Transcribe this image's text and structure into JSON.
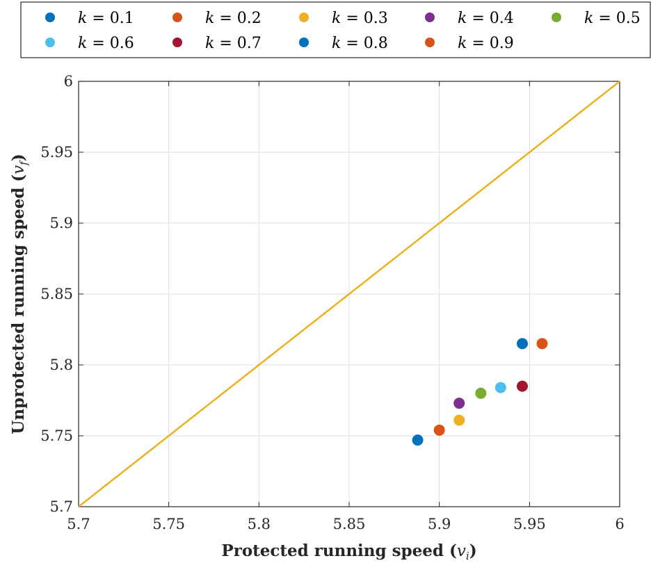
{
  "chart_data": {
    "type": "scatter",
    "xlabel": "Protected running speed (v_i)",
    "xlabel_main": "Protected running speed (",
    "xlabel_var": "v",
    "xlabel_sub": "i",
    "xlabel_close": ")",
    "ylabel": "Unprotected running speed (v_f)",
    "ylabel_main": "Unprotected running speed (",
    "ylabel_var": "v",
    "ylabel_sub": "f",
    "ylabel_close": ")",
    "xlim": [
      5.7,
      6.0
    ],
    "ylim": [
      5.7,
      6.0
    ],
    "xticks": [
      "5.7",
      "5.75",
      "5.8",
      "5.85",
      "5.9",
      "5.95",
      "6"
    ],
    "yticks": [
      "5.7",
      "5.75",
      "5.8",
      "5.85",
      "5.9",
      "5.95",
      "6"
    ],
    "xtick_values": [
      5.7,
      5.75,
      5.8,
      5.85,
      5.9,
      5.95,
      6.0
    ],
    "ytick_values": [
      5.7,
      5.75,
      5.8,
      5.85,
      5.9,
      5.95,
      6.0
    ],
    "grid": true,
    "legend_position": "top",
    "reference_line": {
      "x": [
        5.7,
        6.0
      ],
      "y": [
        5.7,
        6.0
      ],
      "color": "#EDB120"
    },
    "series": [
      {
        "name": "k = 0.1",
        "k": "0.1",
        "color": "#0072BD",
        "x": 5.888,
        "y": 5.747
      },
      {
        "name": "k = 0.2",
        "k": "0.2",
        "color": "#D95319",
        "x": 5.9,
        "y": 5.754
      },
      {
        "name": "k = 0.3",
        "k": "0.3",
        "color": "#EDB120",
        "x": 5.911,
        "y": 5.761
      },
      {
        "name": "k = 0.4",
        "k": "0.4",
        "color": "#7E2F8E",
        "x": 5.911,
        "y": 5.773
      },
      {
        "name": "k = 0.5",
        "k": "0.5",
        "color": "#77AC30",
        "x": 5.923,
        "y": 5.78
      },
      {
        "name": "k = 0.6",
        "k": "0.6",
        "color": "#4DBEEE",
        "x": 5.934,
        "y": 5.784
      },
      {
        "name": "k = 0.7",
        "k": "0.7",
        "color": "#A2142F",
        "x": 5.946,
        "y": 5.785
      },
      {
        "name": "k = 0.8",
        "k": "0.8",
        "color": "#0072BD",
        "x": 5.946,
        "y": 5.815
      },
      {
        "name": "k = 0.9",
        "k": "0.9",
        "color": "#D95319",
        "x": 5.957,
        "y": 5.815
      }
    ]
  }
}
